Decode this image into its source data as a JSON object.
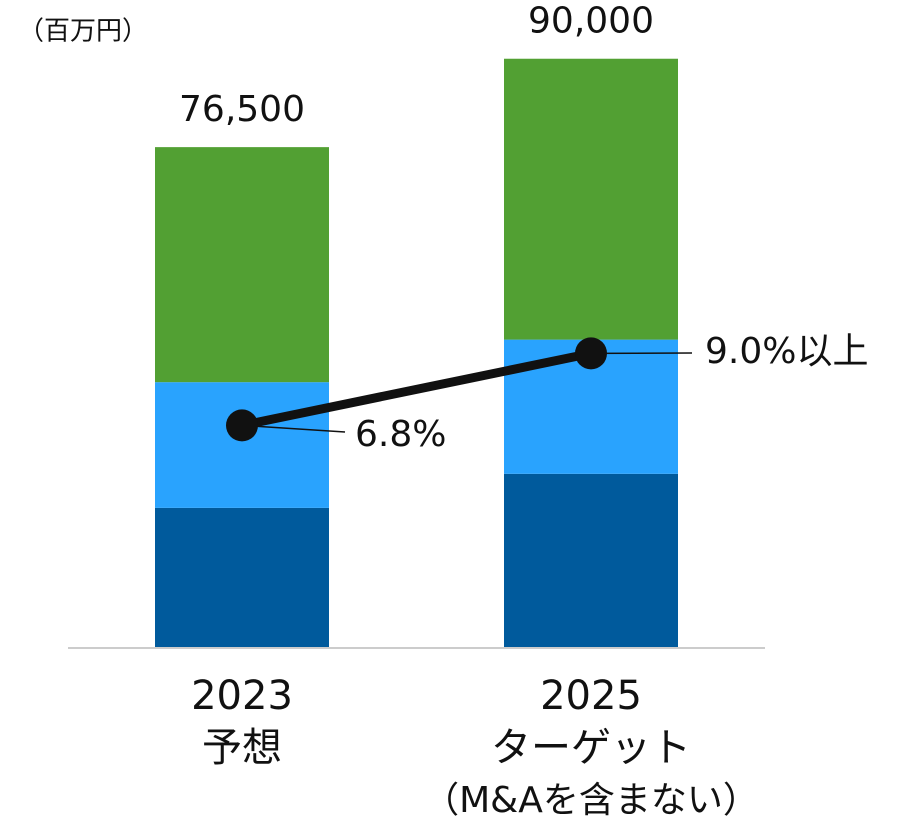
{
  "chart_data": {
    "type": "bar",
    "unit_label": "（百万円）",
    "categories": [
      [
        "2023",
        "予想"
      ],
      [
        "2025",
        "ターゲット",
        "（M&Aを含まない）"
      ]
    ],
    "stacked": true,
    "series": [
      {
        "color": "#005a9c",
        "values": [
          21400,
          26600
        ]
      },
      {
        "color": "#29a3fe",
        "values": [
          19200,
          20500
        ]
      },
      {
        "color": "#52a033",
        "values": [
          35900,
          42900
        ]
      },
      {
        "type": "line",
        "axis": "y2",
        "color": "#111111",
        "values": [
          6.8,
          9.0
        ],
        "value_labels": [
          "6.8%",
          "9.0%以上"
        ]
      }
    ],
    "totals": [
      76500,
      90000
    ],
    "total_labels": [
      "76,500",
      "90,000"
    ],
    "ylim": [
      0,
      95000
    ],
    "y2lim": [
      0,
      19
    ]
  }
}
